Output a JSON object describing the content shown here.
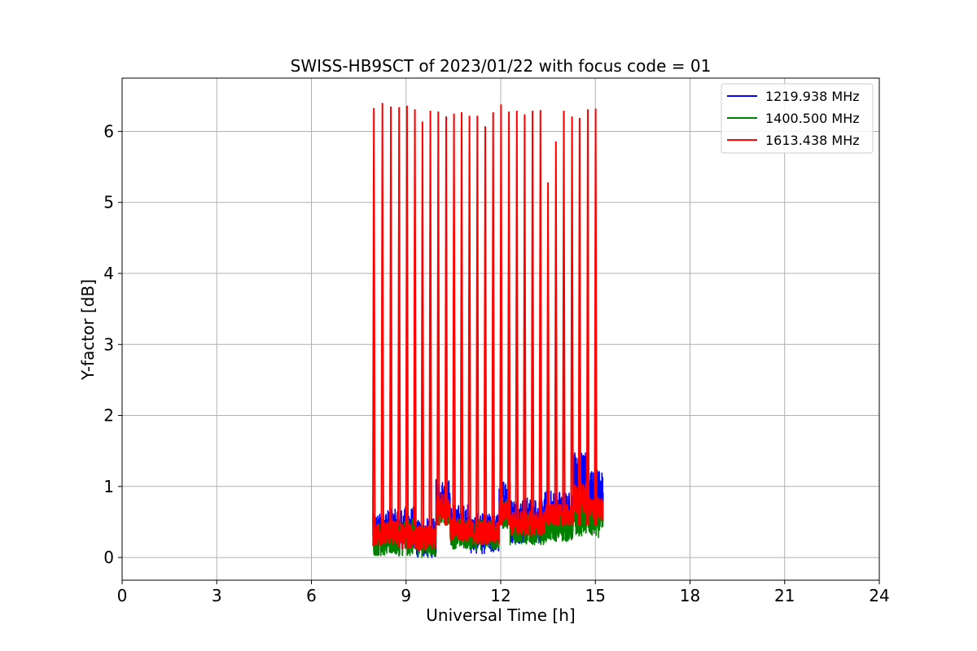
{
  "chart_data": {
    "type": "line",
    "title": "SWISS-HB9SCT of 2023/01/22 with focus code = 01",
    "xlabel": "Universal Time [h]",
    "ylabel": "Y-factor [dB]",
    "xlim": [
      0,
      24
    ],
    "ylim": [
      -0.32,
      6.75
    ],
    "xticks": [
      0,
      3,
      6,
      9,
      12,
      15,
      18,
      21,
      24
    ],
    "yticks": [
      0,
      1,
      2,
      3,
      4,
      5,
      6
    ],
    "grid": true,
    "legend_position": "top-right",
    "data_range_hours": [
      7.95,
      15.25
    ],
    "series": [
      {
        "name": "1219.938 MHz",
        "color": "#0000ff",
        "segments": [
          {
            "x0": 7.95,
            "x1": 8.22,
            "lo": 0.15,
            "hi": 0.62
          },
          {
            "x0": 8.22,
            "x1": 8.75,
            "lo": 0.2,
            "hi": 0.68
          },
          {
            "x0": 8.75,
            "x1": 9.3,
            "lo": 0.12,
            "hi": 0.72
          },
          {
            "x0": 9.3,
            "x1": 9.95,
            "lo": 0.0,
            "hi": 0.55
          },
          {
            "x0": 9.95,
            "x1": 10.4,
            "lo": 0.55,
            "hi": 1.1
          },
          {
            "x0": 10.4,
            "x1": 11.0,
            "lo": 0.25,
            "hi": 0.75
          },
          {
            "x0": 11.0,
            "x1": 11.95,
            "lo": 0.05,
            "hi": 0.62
          },
          {
            "x0": 11.95,
            "x1": 12.3,
            "lo": 0.55,
            "hi": 1.12
          },
          {
            "x0": 12.3,
            "x1": 13.4,
            "lo": 0.2,
            "hi": 0.85
          },
          {
            "x0": 13.4,
            "x1": 14.3,
            "lo": 0.35,
            "hi": 0.95
          },
          {
            "x0": 14.3,
            "x1": 14.8,
            "lo": 0.65,
            "hi": 1.5
          },
          {
            "x0": 14.8,
            "x1": 15.25,
            "lo": 0.5,
            "hi": 1.25
          }
        ]
      },
      {
        "name": "1400.500 MHz",
        "color": "#008000",
        "segments": [
          {
            "x0": 7.95,
            "x1": 8.22,
            "lo": 0.02,
            "hi": 0.5
          },
          {
            "x0": 8.22,
            "x1": 8.75,
            "lo": 0.02,
            "hi": 0.5
          },
          {
            "x0": 8.75,
            "x1": 9.3,
            "lo": 0.02,
            "hi": 0.55
          },
          {
            "x0": 9.3,
            "x1": 9.95,
            "lo": 0.0,
            "hi": 0.45
          },
          {
            "x0": 9.95,
            "x1": 10.4,
            "lo": 0.45,
            "hi": 0.8
          },
          {
            "x0": 10.4,
            "x1": 11.0,
            "lo": 0.12,
            "hi": 0.55
          },
          {
            "x0": 11.0,
            "x1": 11.95,
            "lo": 0.1,
            "hi": 0.55
          },
          {
            "x0": 11.95,
            "x1": 12.3,
            "lo": 0.4,
            "hi": 0.82
          },
          {
            "x0": 12.3,
            "x1": 13.4,
            "lo": 0.18,
            "hi": 0.6
          },
          {
            "x0": 13.4,
            "x1": 14.3,
            "lo": 0.22,
            "hi": 0.65
          },
          {
            "x0": 14.3,
            "x1": 14.8,
            "lo": 0.3,
            "hi": 0.85
          },
          {
            "x0": 14.8,
            "x1": 15.25,
            "lo": 0.28,
            "hi": 0.75
          }
        ]
      },
      {
        "name": "1613.438 MHz",
        "color": "#ff0000",
        "segments": [
          {
            "x0": 7.95,
            "x1": 8.22,
            "lo": 0.15,
            "hi": 0.48
          },
          {
            "x0": 8.22,
            "x1": 8.75,
            "lo": 0.18,
            "hi": 0.52
          },
          {
            "x0": 8.75,
            "x1": 9.3,
            "lo": 0.12,
            "hi": 0.48
          },
          {
            "x0": 9.3,
            "x1": 9.95,
            "lo": 0.1,
            "hi": 0.45
          },
          {
            "x0": 9.95,
            "x1": 10.4,
            "lo": 0.55,
            "hi": 0.9
          },
          {
            "x0": 10.4,
            "x1": 11.0,
            "lo": 0.22,
            "hi": 0.55
          },
          {
            "x0": 11.0,
            "x1": 11.95,
            "lo": 0.18,
            "hi": 0.52
          },
          {
            "x0": 11.95,
            "x1": 12.3,
            "lo": 0.5,
            "hi": 0.82
          },
          {
            "x0": 12.3,
            "x1": 13.4,
            "lo": 0.3,
            "hi": 0.65
          },
          {
            "x0": 13.4,
            "x1": 14.3,
            "lo": 0.45,
            "hi": 0.75
          },
          {
            "x0": 14.3,
            "x1": 14.8,
            "lo": 0.6,
            "hi": 1.05
          },
          {
            "x0": 14.8,
            "x1": 15.25,
            "lo": 0.5,
            "hi": 0.85
          }
        ],
        "spikes": [
          {
            "x": 7.98,
            "y": 6.33
          },
          {
            "x": 8.25,
            "y": 6.4
          },
          {
            "x": 8.52,
            "y": 6.35
          },
          {
            "x": 8.78,
            "y": 6.34
          },
          {
            "x": 9.03,
            "y": 6.36
          },
          {
            "x": 9.28,
            "y": 6.31
          },
          {
            "x": 9.52,
            "y": 6.14
          },
          {
            "x": 9.77,
            "y": 6.29
          },
          {
            "x": 10.02,
            "y": 6.28
          },
          {
            "x": 10.27,
            "y": 6.21
          },
          {
            "x": 10.52,
            "y": 6.25
          },
          {
            "x": 10.76,
            "y": 6.27
          },
          {
            "x": 11.01,
            "y": 6.22
          },
          {
            "x": 11.26,
            "y": 6.22
          },
          {
            "x": 11.51,
            "y": 6.07
          },
          {
            "x": 11.76,
            "y": 6.27
          },
          {
            "x": 12.01,
            "y": 6.38
          },
          {
            "x": 12.26,
            "y": 6.28
          },
          {
            "x": 12.51,
            "y": 6.29
          },
          {
            "x": 12.76,
            "y": 6.24
          },
          {
            "x": 13.01,
            "y": 6.29
          },
          {
            "x": 13.26,
            "y": 6.3
          },
          {
            "x": 13.5,
            "y": 5.28
          },
          {
            "x": 13.75,
            "y": 5.86
          },
          {
            "x": 14.0,
            "y": 6.29
          },
          {
            "x": 14.26,
            "y": 6.21
          },
          {
            "x": 14.5,
            "y": 6.19
          },
          {
            "x": 14.76,
            "y": 6.31
          },
          {
            "x": 15.01,
            "y": 6.32
          }
        ]
      }
    ]
  }
}
